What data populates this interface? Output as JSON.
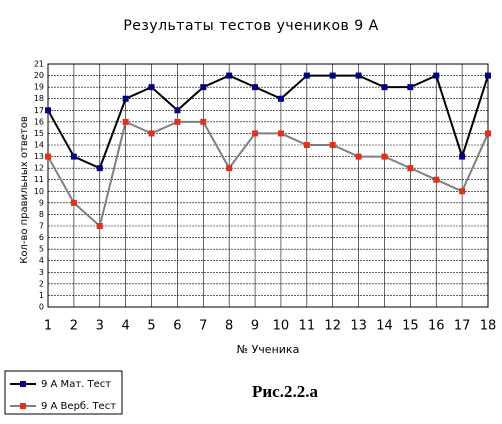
{
  "chart_data": {
    "type": "line",
    "title": "Результаты тестов учеников 9 А",
    "xlabel": "№ Ученика",
    "ylabel": "Кол-во правильных ответов",
    "caption": "Рис.2.2.а",
    "x": [
      1,
      2,
      3,
      4,
      5,
      6,
      7,
      8,
      9,
      10,
      11,
      12,
      13,
      14,
      15,
      16,
      17,
      18
    ],
    "xlim": [
      1,
      18
    ],
    "xticks": [
      1,
      2,
      3,
      4,
      5,
      6,
      7,
      8,
      9,
      10,
      11,
      12,
      13,
      14,
      15,
      16,
      17,
      18
    ],
    "ylim": [
      0,
      21
    ],
    "yticks": [
      0,
      1,
      2,
      3,
      4,
      5,
      6,
      7,
      8,
      9,
      10,
      11,
      12,
      13,
      14,
      15,
      16,
      17,
      18,
      19,
      20,
      21
    ],
    "grid": true,
    "legend": "bottom-left",
    "series": [
      {
        "name": "9 А  Мат. Тест",
        "color": "#000000",
        "marker_color": "#000080",
        "values": [
          17,
          13,
          12,
          18,
          19,
          17,
          19,
          20,
          19,
          18,
          20,
          20,
          20,
          19,
          19,
          20,
          13,
          20
        ]
      },
      {
        "name": "9 А  Верб. Тест",
        "color": "#808080",
        "marker_color": "#e03020",
        "values": [
          13,
          9,
          7,
          16,
          15,
          16,
          16,
          12,
          15,
          15,
          14,
          14,
          13,
          13,
          12,
          11,
          10,
          15
        ]
      }
    ]
  }
}
